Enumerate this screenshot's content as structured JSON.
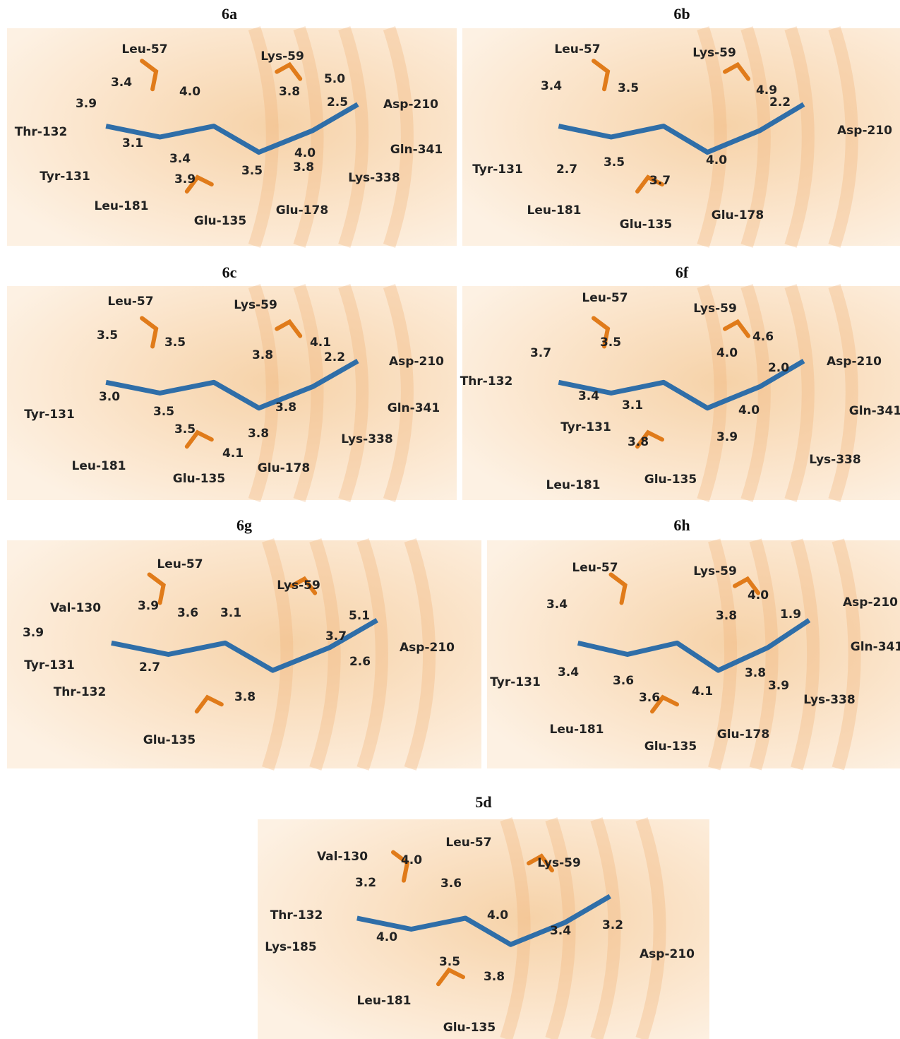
{
  "panels": [
    {
      "title": "6a",
      "residues": [
        "Leu-57",
        "Lys-59",
        "Asp-210",
        "Thr-132",
        "Gln-341",
        "Tyr-131",
        "Lys-338",
        "Leu-181",
        "Glu-178",
        "Glu-135"
      ],
      "distances": [
        "3.4",
        "3.9",
        "4.0",
        "5.0",
        "3.8",
        "2.5",
        "3.1",
        "3.4",
        "4.0",
        "3.9",
        "3.5",
        "3.8"
      ]
    },
    {
      "title": "6b",
      "residues": [
        "Leu-57",
        "Lys-59",
        "Asp-210",
        "Tyr-131",
        "Leu-181",
        "Glu-135",
        "Glu-178"
      ],
      "distances": [
        "3.4",
        "3.5",
        "4.9",
        "2.2",
        "2.7",
        "3.5",
        "3.7",
        "4.0"
      ]
    },
    {
      "title": "6c",
      "residues": [
        "Leu-57",
        "Lys-59",
        "Asp-210",
        "Tyr-131",
        "Gln-341",
        "Lys-338",
        "Leu-181",
        "Glu-178",
        "Glu-135"
      ],
      "distances": [
        "3.5",
        "3.5",
        "3.8",
        "4.1",
        "2.2",
        "3.0",
        "3.5",
        "3.8",
        "3.5",
        "3.8",
        "4.1"
      ]
    },
    {
      "title": "6f",
      "residues": [
        "Leu-57",
        "Lys-59",
        "Asp-210",
        "Thr-132",
        "Gln-341",
        "Tyr-131",
        "Lys-338",
        "Leu-181",
        "Glu-135"
      ],
      "distances": [
        "3.7",
        "3.5",
        "4.0",
        "4.6",
        "2.0",
        "3.4",
        "3.1",
        "4.0",
        "3.9",
        "3.8"
      ]
    },
    {
      "title": "6g",
      "residues": [
        "Leu-57",
        "Lys-59",
        "Val-130",
        "Asp-210",
        "Tyr-131",
        "Thr-132",
        "Glu-135"
      ],
      "distances": [
        "3.9",
        "3.6",
        "3.1",
        "3.9",
        "5.1",
        "3.7",
        "2.7",
        "2.6",
        "3.8"
      ]
    },
    {
      "title": "6h",
      "residues": [
        "Leu-57",
        "Lys-59",
        "Asp-210",
        "Gln-341",
        "Tyr-131",
        "Lys-338",
        "Leu-181",
        "Glu-178",
        "Glu-135"
      ],
      "distances": [
        "3.4",
        "4.0",
        "3.8",
        "1.9",
        "3.4",
        "3.6",
        "3.8",
        "3.6",
        "4.1",
        "3.9"
      ]
    },
    {
      "title": "5d",
      "residues": [
        "Leu-57",
        "Val-130",
        "Lys-59",
        "Thr-132",
        "Asp-210",
        "Lys-185",
        "Leu-181",
        "Glu-135"
      ],
      "distances": [
        "4.0",
        "3.2",
        "3.6",
        "4.0",
        "4.0",
        "3.4",
        "3.2",
        "3.5",
        "3.8"
      ]
    }
  ]
}
